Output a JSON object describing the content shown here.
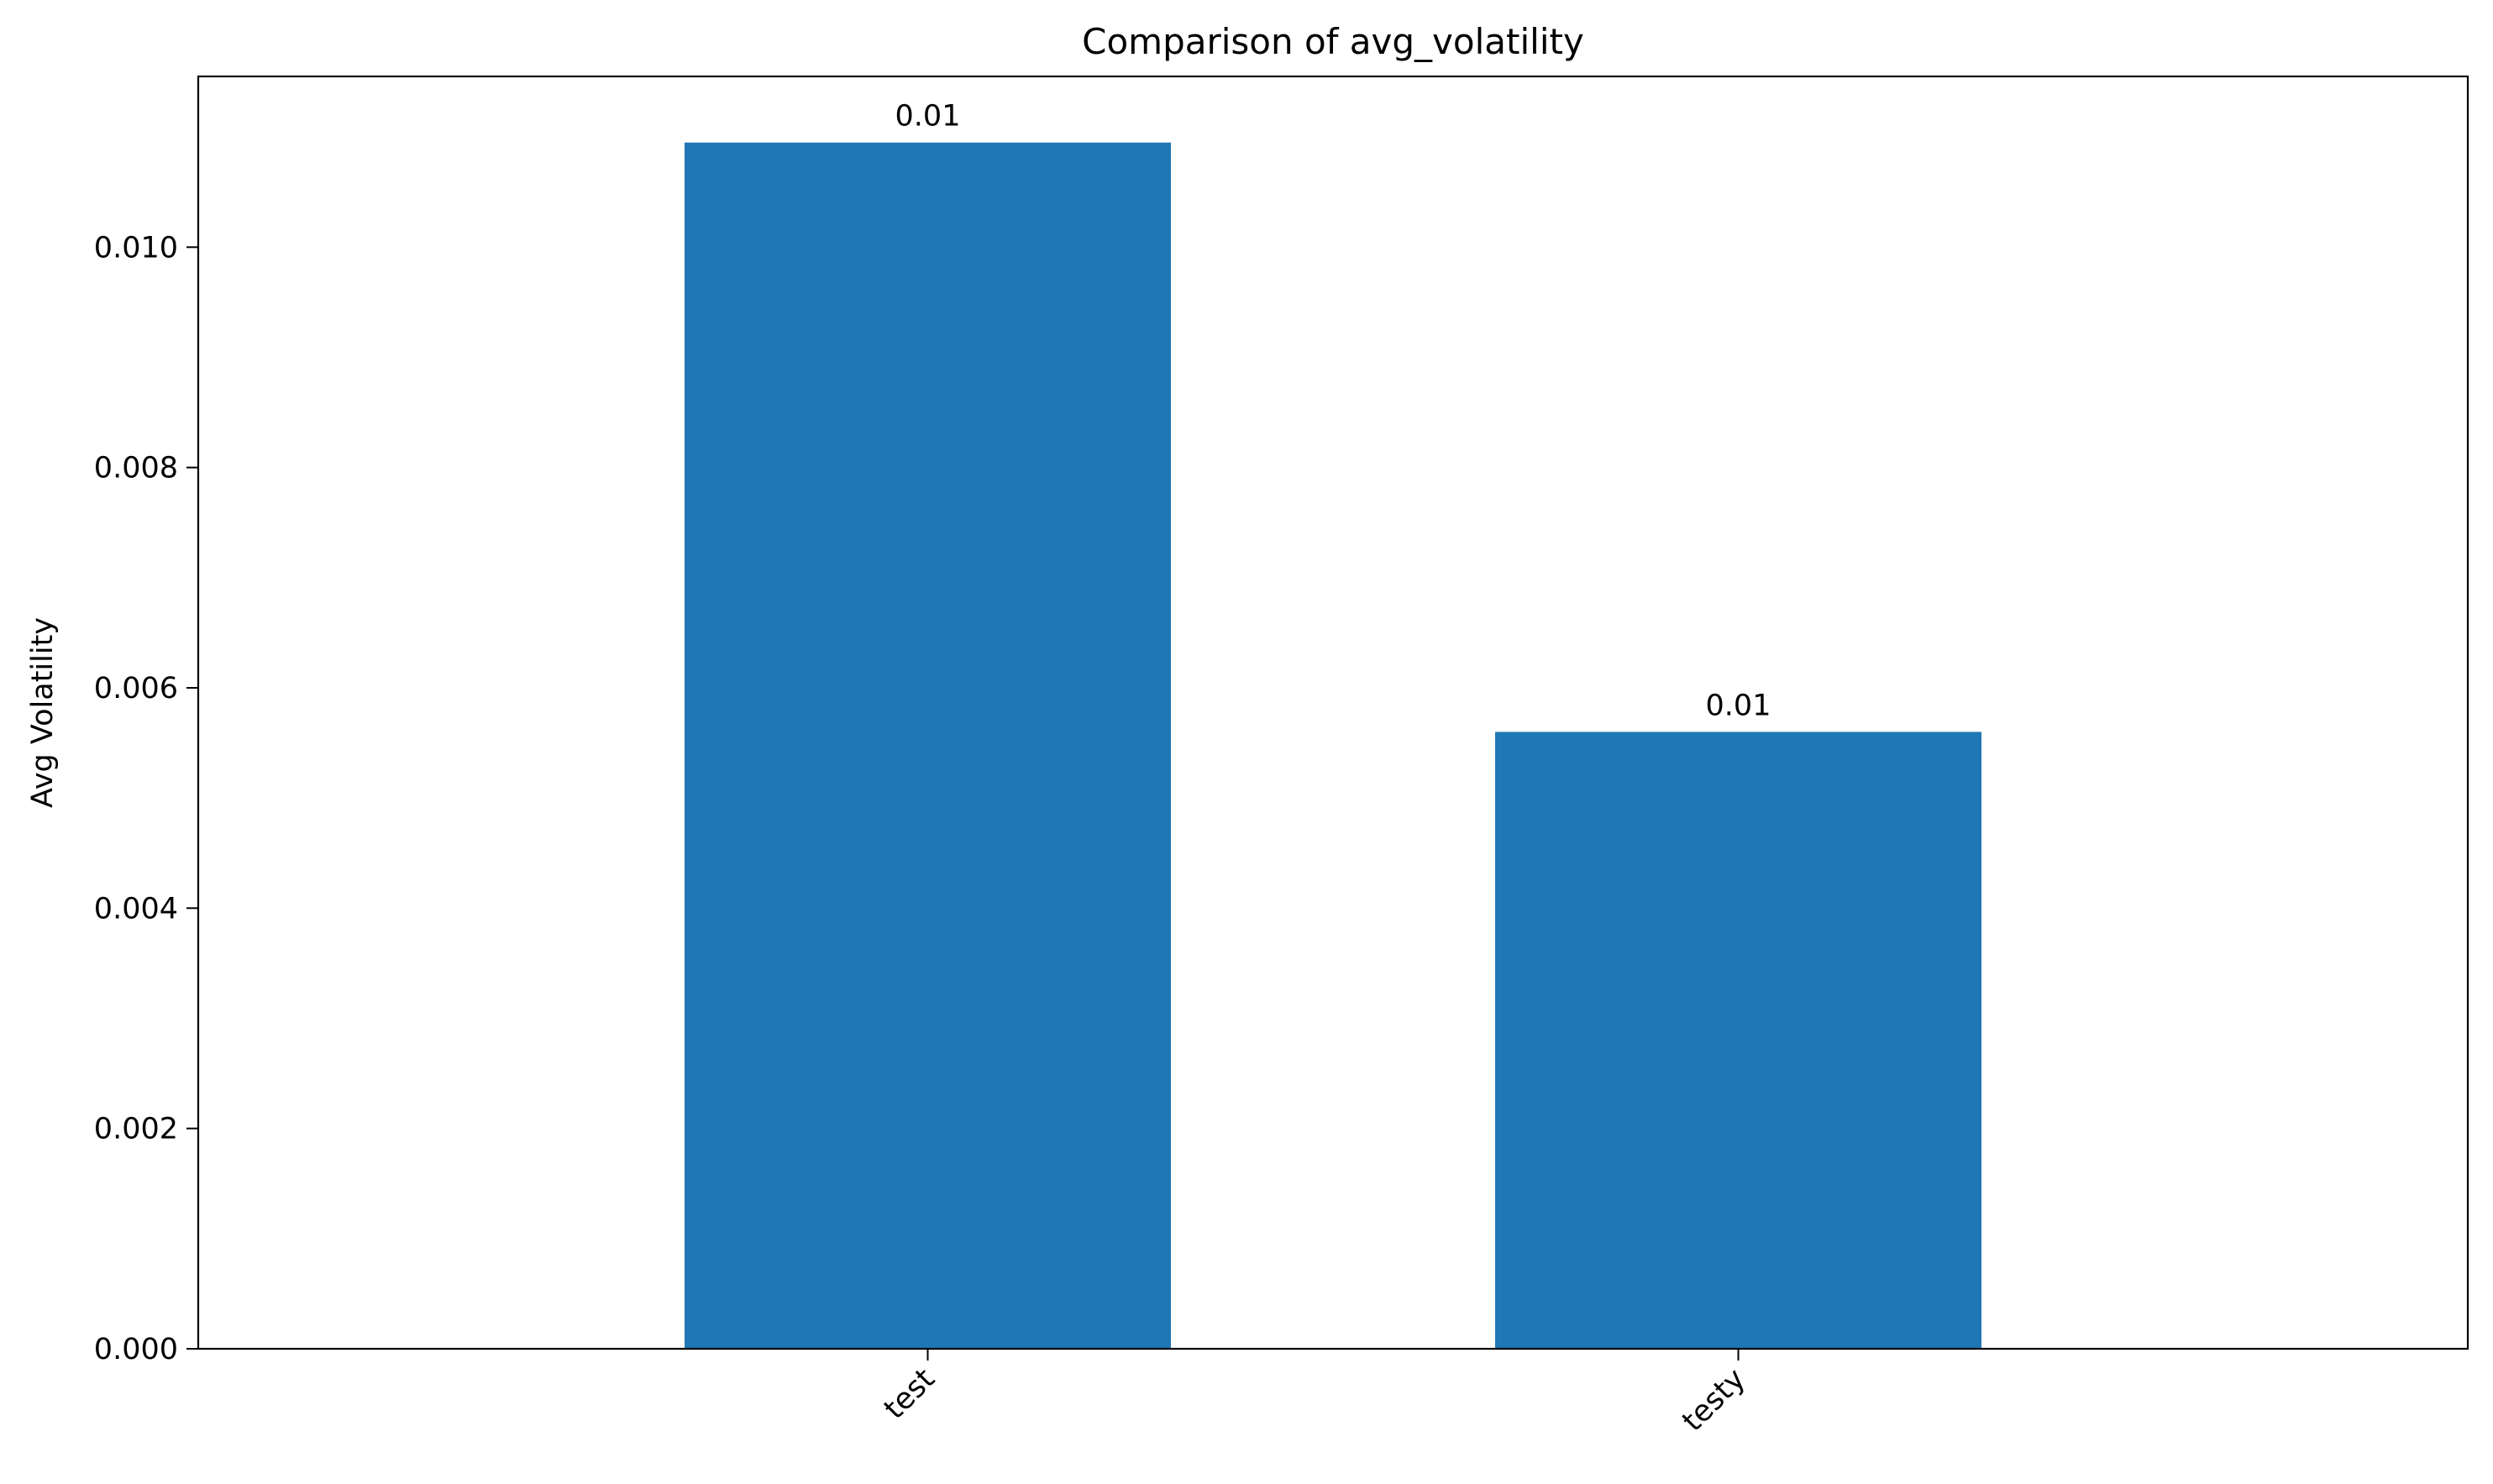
{
  "chart_data": {
    "type": "bar",
    "title": "Comparison of avg_volatility",
    "xlabel": "",
    "ylabel": "Avg Volatility",
    "categories": [
      "test",
      "testy"
    ],
    "values": [
      0.01095,
      0.0056
    ],
    "data_labels": [
      "0.01",
      "0.01"
    ],
    "ylim": [
      0,
      0.01155
    ],
    "yticks": [
      0,
      0.002,
      0.004,
      0.006,
      0.008,
      0.01
    ],
    "ytick_labels": [
      "0.000",
      "0.002",
      "0.004",
      "0.006",
      "0.008",
      "0.010"
    ],
    "bar_color": "#1f77b4",
    "grid": false,
    "legend": "none"
  }
}
